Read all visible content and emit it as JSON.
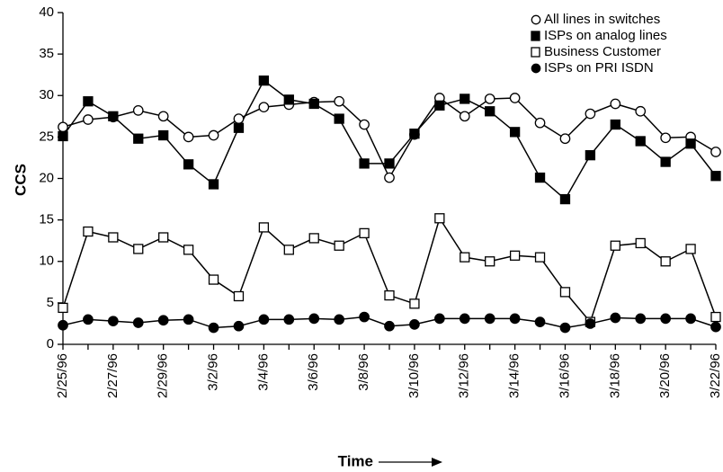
{
  "chart_data": {
    "type": "line",
    "x_label": "Time",
    "y_label": "CCS",
    "categories": [
      "2/25/96",
      null,
      "2/27/96",
      null,
      "2/29/96",
      null,
      "3/2/96",
      null,
      "3/4/96",
      null,
      "3/6/96",
      null,
      "3/8/96",
      null,
      "3/10/96",
      null,
      "3/12/96",
      null,
      "3/14/96",
      null,
      "3/16/96",
      null,
      "3/18/96",
      null,
      "3/20/96",
      null,
      "3/22/96"
    ],
    "series": [
      {
        "name": "All lines in switches",
        "color": "#000000",
        "marker": "circle",
        "fill": "#ffffff",
        "values": [
          26.2,
          27.1,
          27.4,
          28.2,
          27.5,
          25.0,
          25.2,
          27.2,
          28.6,
          28.9,
          29.2,
          29.3,
          26.5,
          20.1,
          25.3,
          29.7,
          27.5,
          29.6,
          29.7,
          26.7,
          24.8,
          27.8,
          29.0,
          28.1,
          24.9,
          25.0,
          23.2
        ]
      },
      {
        "name": "ISPs on analog lines",
        "color": "#000000",
        "marker": "square",
        "fill": "#000000",
        "values": [
          25.1,
          29.3,
          27.5,
          24.8,
          25.2,
          21.7,
          19.3,
          26.1,
          31.8,
          29.5,
          29.0,
          27.2,
          21.8,
          21.8,
          25.4,
          28.8,
          29.6,
          28.1,
          25.6,
          20.1,
          17.5,
          22.8,
          26.5,
          24.5,
          22.0,
          24.2,
          20.3
        ]
      },
      {
        "name": "Business Customer",
        "color": "#000000",
        "marker": "square",
        "fill": "#ffffff",
        "values": [
          4.4,
          13.6,
          12.9,
          11.5,
          12.9,
          11.4,
          7.8,
          5.8,
          14.1,
          11.4,
          12.8,
          11.9,
          13.4,
          5.9,
          4.9,
          15.2,
          10.5,
          10.0,
          10.7,
          10.5,
          6.3,
          2.7,
          11.9,
          12.2,
          10.0,
          11.5,
          3.3
        ]
      },
      {
        "name": "ISPs on PRI ISDN",
        "color": "#000000",
        "marker": "circle",
        "fill": "#000000",
        "values": [
          2.3,
          3.0,
          2.8,
          2.6,
          2.9,
          3.0,
          2.0,
          2.2,
          3.0,
          3.0,
          3.1,
          3.0,
          3.3,
          2.2,
          2.4,
          3.1,
          3.1,
          3.1,
          3.1,
          2.7,
          2.0,
          2.5,
          3.2,
          3.1,
          3.1,
          3.1,
          2.1
        ]
      }
    ],
    "ylim": [
      0,
      40
    ],
    "yticks": [
      0,
      5,
      10,
      15,
      20,
      25,
      30,
      35,
      40
    ],
    "grid": false,
    "legend": "top-right"
  }
}
